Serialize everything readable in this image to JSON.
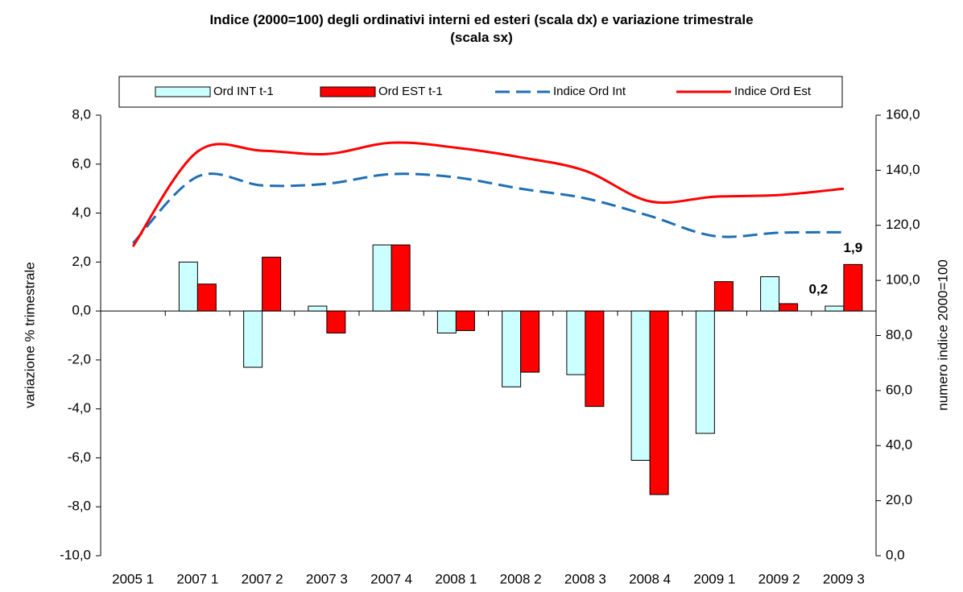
{
  "chart_data": {
    "type": "bar",
    "title": "Indice (2000=100) degli ordinativi  interni ed esteri (scala dx) e variazione trimestrale (scala sx)",
    "y_label": "variazione % trimestrale",
    "y2_label": "numero indice 2000=100",
    "categories": [
      "2005  1",
      "2007  1",
      "2007  2",
      "2007  3",
      "2007  4",
      "2008  1",
      "2008  2",
      "2008  3",
      "2008  4",
      "2009  1",
      "2009  2",
      "2009  3"
    ],
    "series": [
      {
        "name": "Ord INT t-1",
        "type": "bar",
        "color": "#ccffff",
        "values": [
          null,
          2.0,
          -2.3,
          0.2,
          2.7,
          -0.9,
          -3.1,
          -2.6,
          -6.1,
          -5.0,
          1.4,
          0.2
        ],
        "value_labels": [
          null,
          null,
          null,
          null,
          null,
          null,
          null,
          null,
          null,
          null,
          null,
          "0,2"
        ]
      },
      {
        "name": "Ord EST t-1",
        "type": "bar",
        "color": "#ff0000",
        "values": [
          null,
          1.1,
          2.2,
          -0.9,
          2.7,
          -0.8,
          -2.5,
          -3.9,
          -7.5,
          1.2,
          0.3,
          1.9
        ],
        "value_labels": [
          null,
          null,
          null,
          null,
          null,
          null,
          null,
          null,
          null,
          null,
          null,
          "1,9"
        ]
      },
      {
        "name": "Indice Ord Int",
        "type": "line",
        "dashed": true,
        "axis": "y2",
        "color": "#1f6fb4",
        "values": [
          113.5,
          137.7,
          134.5,
          135.1,
          138.6,
          137.4,
          133.3,
          129.8,
          123.4,
          116.1,
          117.3,
          117.5
        ]
      },
      {
        "name": "Indice Ord Est",
        "type": "line",
        "dashed": false,
        "axis": "y2",
        "color": "#ff0000",
        "values": [
          112.3,
          146.8,
          147.1,
          145.9,
          150.0,
          148.2,
          144.7,
          139.8,
          128.7,
          130.4,
          131.0,
          133.3
        ]
      }
    ],
    "ylim": [
      -10,
      8
    ],
    "yticks": [
      {
        "value": -10,
        "label": "-10,0"
      },
      {
        "value": -8,
        "label": "-8,0"
      },
      {
        "value": -6,
        "label": "-6,0"
      },
      {
        "value": -4,
        "label": "-4,0"
      },
      {
        "value": -2,
        "label": "-2,0"
      },
      {
        "value": 0,
        "label": "0,0"
      },
      {
        "value": 2,
        "label": "2,0"
      },
      {
        "value": 4,
        "label": "4,0"
      },
      {
        "value": 6,
        "label": "6,0"
      },
      {
        "value": 8,
        "label": "8,0"
      }
    ],
    "y2lim": [
      0,
      160
    ],
    "y2ticks": [
      {
        "value": 0,
        "label": "0,0"
      },
      {
        "value": 20,
        "label": "20,0"
      },
      {
        "value": 40,
        "label": "40,0"
      },
      {
        "value": 60,
        "label": "60,0"
      },
      {
        "value": 80,
        "label": "80,0"
      },
      {
        "value": 100,
        "label": "100,0"
      },
      {
        "value": 120,
        "label": "120,0"
      },
      {
        "value": 140,
        "label": "140,0"
      },
      {
        "value": 160,
        "label": "160,0"
      }
    ],
    "grid": false,
    "legend": "top"
  }
}
